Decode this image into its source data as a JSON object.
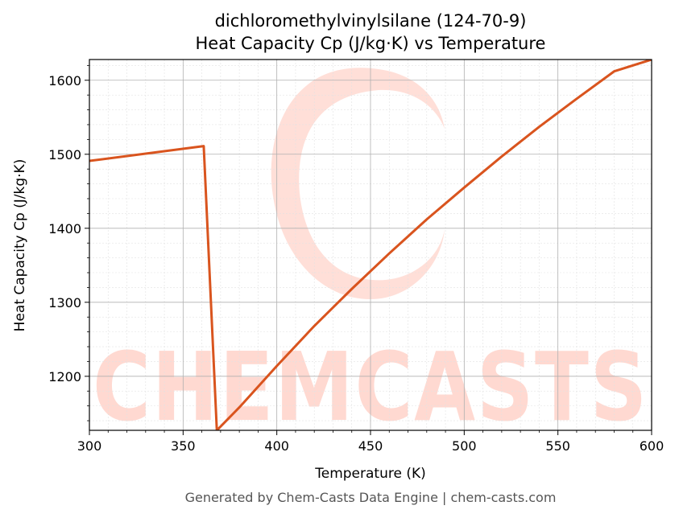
{
  "colors": {
    "line": "#d9541e",
    "grid_major": "#b0b0b0",
    "grid_minor": "#e2e2e2",
    "watermark": "#ffd9d1",
    "footer": "#555555"
  },
  "watermark": {
    "text": "CHEMCASTS"
  },
  "footer": {
    "text": "Generated by Chem-Casts Data Engine | chem-casts.com"
  },
  "chart_data": {
    "type": "line",
    "title": "dichloromethylvinylsilane (124-70-9)",
    "subtitle": "Heat Capacity Cp (J/kg·K) vs Temperature",
    "xlabel": "Temperature (K)",
    "ylabel": "Heat Capacity Cp (J/kg·K)",
    "xlim": [
      300,
      600
    ],
    "ylim": [
      1127,
      1628
    ],
    "xticks": [
      300,
      350,
      400,
      450,
      500,
      550,
      600
    ],
    "yticks": [
      1200,
      1300,
      1400,
      1500,
      1600
    ],
    "grid": true,
    "legend": "none",
    "series": [
      {
        "x": [
          300,
          361,
          368,
          380,
          400,
          420,
          440,
          460,
          480,
          500,
          520,
          540,
          560,
          580,
          600
        ],
        "y": [
          1491,
          1511,
          1127,
          1158,
          1214,
          1268,
          1318,
          1366,
          1412,
          1455,
          1497,
          1537,
          1575,
          1612,
          1628
        ]
      }
    ]
  }
}
